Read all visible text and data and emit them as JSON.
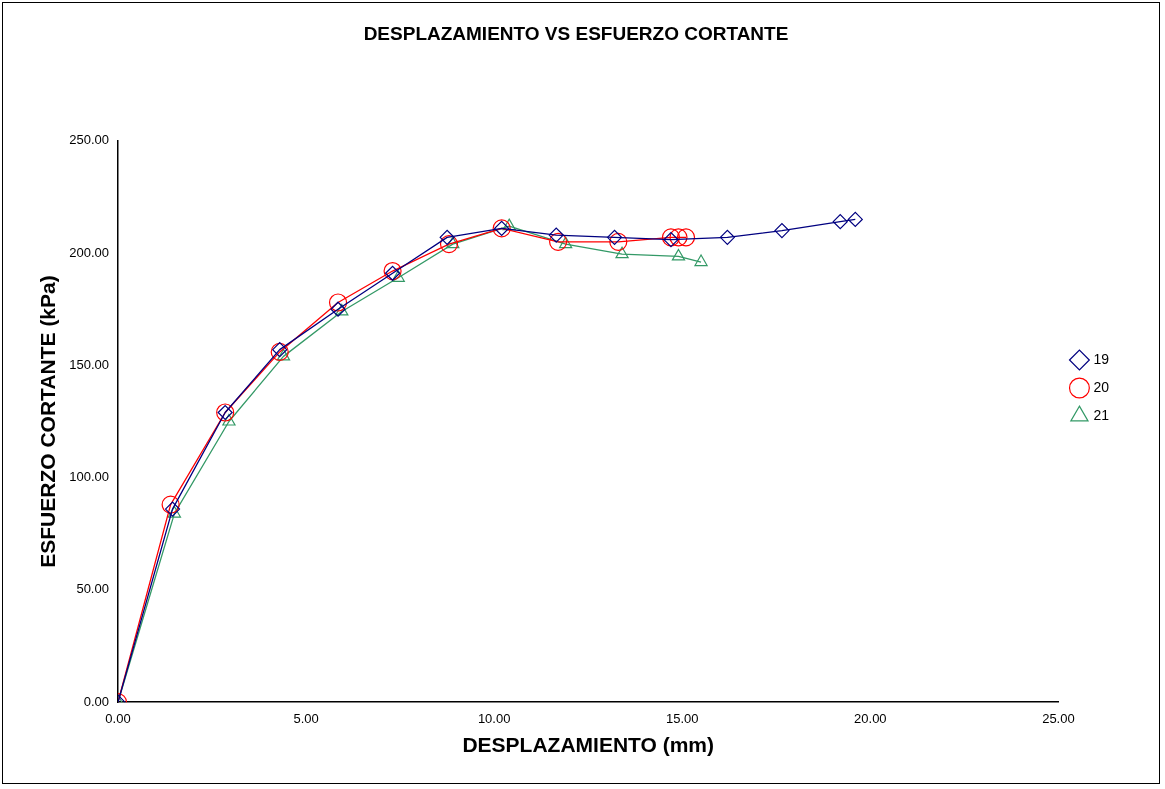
{
  "chart_data": {
    "type": "line",
    "title": "DESPLAZAMIENTO VS ESFUERZO CORTANTE",
    "xlabel": "DESPLAZAMIENTO (mm)",
    "ylabel": "ESFUERZO CORTANTE (kPa)",
    "xlim": [
      0,
      25
    ],
    "xticks": [
      {
        "value": 0,
        "label": "0.00"
      },
      {
        "value": 5,
        "label": "5.00"
      },
      {
        "value": 10,
        "label": "10.00"
      },
      {
        "value": 15,
        "label": "15.00"
      },
      {
        "value": 20,
        "label": "20.00"
      },
      {
        "value": 25,
        "label": "25.00"
      }
    ],
    "ylim": [
      0,
      250
    ],
    "yticks": [
      {
        "value": 0,
        "label": "0.00"
      },
      {
        "value": 50,
        "label": "50.00"
      },
      {
        "value": 100,
        "label": "100.00"
      },
      {
        "value": 150,
        "label": "150.00"
      },
      {
        "value": 200,
        "label": "200.00"
      },
      {
        "value": 250,
        "label": "250.00"
      }
    ],
    "grid": false,
    "legend": "right",
    "line_style": "solid",
    "series": [
      {
        "name": "19",
        "color": "#000080",
        "marker": "diamond",
        "x": [
          0,
          1.45,
          2.85,
          4.3,
          5.85,
          7.3,
          8.75,
          10.2,
          11.65,
          13.2,
          14.7,
          16.2,
          17.65,
          19.2,
          19.6
        ],
        "values": [
          0,
          86,
          129,
          157,
          175,
          191,
          207,
          211,
          208,
          207,
          206,
          207,
          210,
          214,
          215
        ]
      },
      {
        "name": "20",
        "color": "#ff0000",
        "marker": "circle",
        "x": [
          0,
          1.4,
          2.85,
          4.3,
          5.85,
          7.3,
          8.8,
          10.2,
          11.7,
          13.3,
          14.7,
          14.9,
          15.1
        ],
        "values": [
          0,
          88,
          129,
          156,
          178,
          192,
          204,
          211,
          205,
          205,
          207,
          207,
          207
        ]
      },
      {
        "name": "21",
        "color": "#339966",
        "marker": "triangle",
        "x": [
          0,
          1.5,
          2.95,
          4.4,
          5.95,
          7.45,
          8.9,
          10.4,
          11.9,
          13.4,
          14.9,
          15.5
        ],
        "values": [
          0,
          84,
          125,
          154,
          174,
          189,
          204,
          212,
          204,
          199.5,
          198.5,
          196
        ]
      }
    ]
  }
}
